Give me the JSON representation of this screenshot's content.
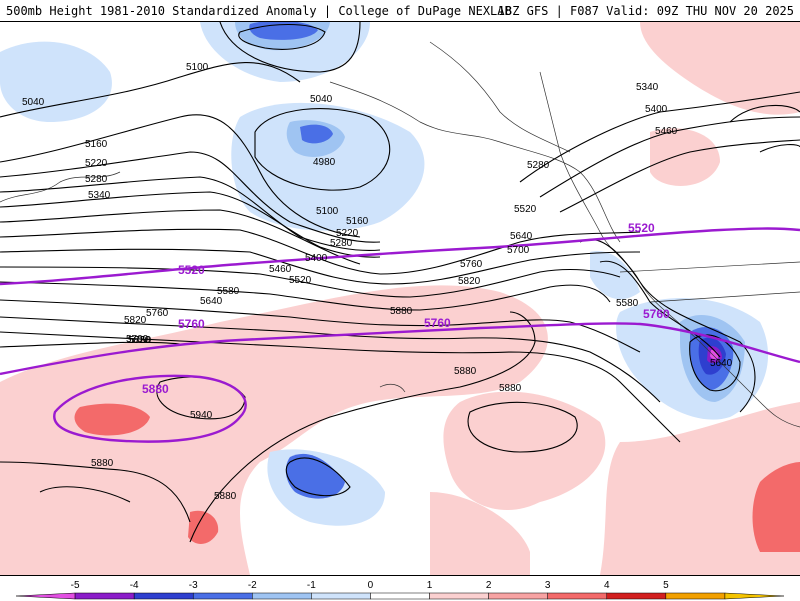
{
  "header": {
    "title": "500mb Height 1981-2010 Standardized Anomaly | College of DuPage NEXLAB",
    "run": "18Z GFS | F087 Valid: 09Z THU NOV 20 2025"
  },
  "colorbar": {
    "ticks": [
      "-5",
      "-4",
      "-3",
      "-2",
      "-1",
      "0",
      "1",
      "2",
      "3",
      "4",
      "5"
    ],
    "colors": [
      "#e24fe2",
      "#8b1cc9",
      "#2e3fcf",
      "#4a6fe6",
      "#9fc4f2",
      "#cfe3fb",
      "#ffffff",
      "#fbd0d0",
      "#f7a3a3",
      "#f36a6a",
      "#d21f1f",
      "#f2a000",
      "#f5c400"
    ]
  },
  "map": {
    "height_labels": [
      "5040",
      "5100",
      "5040",
      "4980",
      "5160",
      "5220",
      "5280",
      "5340",
      "5100",
      "5160",
      "5220",
      "5280",
      "5400",
      "5460",
      "5520",
      "5580",
      "5640",
      "5700",
      "5760",
      "5820",
      "5880",
      "5940",
      "5880",
      "5880",
      "5880",
      "5880",
      "5280",
      "5520",
      "5640",
      "5700",
      "5760",
      "5820",
      "5880",
      "5580",
      "5640",
      "5340",
      "5400",
      "5460"
    ],
    "highlight_labels": [
      "5520",
      "5760",
      "5880",
      "5520",
      "5760"
    ],
    "colors": {
      "contour": "#000000",
      "highlight": "#9b1ad0",
      "coast": "#333333"
    }
  }
}
